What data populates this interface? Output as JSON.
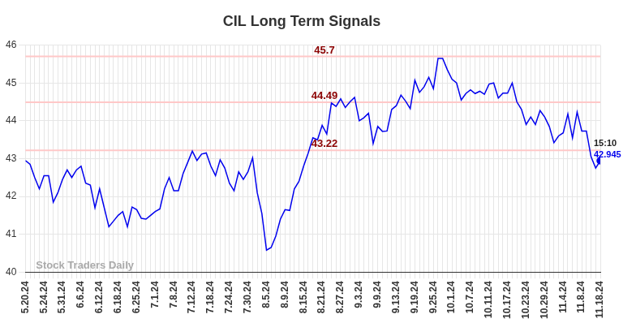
{
  "chart_data": {
    "type": "line",
    "title": "CIL Long Term Signals",
    "categories": [
      "5.20.24",
      null,
      null,
      null,
      "5.24.24",
      null,
      null,
      null,
      "5.31.24",
      null,
      null,
      null,
      "6.6.24",
      null,
      null,
      null,
      "6.12.24",
      null,
      null,
      null,
      "6.18.24",
      null,
      null,
      null,
      "6.25.24",
      null,
      null,
      null,
      "7.1.24",
      null,
      null,
      null,
      "7.8.24",
      null,
      null,
      null,
      "7.12.24",
      null,
      null,
      null,
      "7.18.24",
      null,
      null,
      null,
      "7.24.24",
      null,
      null,
      null,
      "7.30.24",
      null,
      null,
      null,
      "8.5.24",
      null,
      null,
      null,
      "8.9.24",
      null,
      null,
      null,
      "8.15.24",
      null,
      null,
      null,
      "8.21.24",
      null,
      null,
      null,
      "8.27.24",
      null,
      null,
      null,
      "9.3.24",
      null,
      null,
      null,
      "9.9.24",
      null,
      null,
      null,
      "9.13.24",
      null,
      null,
      null,
      "9.19.24",
      null,
      null,
      null,
      "9.25.24",
      null,
      null,
      null,
      "10.1.24",
      null,
      null,
      null,
      "10.7.24",
      null,
      null,
      null,
      "10.11.24",
      null,
      null,
      null,
      "10.17.24",
      null,
      null,
      null,
      "10.23.24",
      null,
      null,
      null,
      "10.29.24",
      null,
      null,
      null,
      "11.4.24",
      null,
      null,
      null,
      "11.8.24",
      null,
      null,
      null,
      "11.18.24"
    ],
    "values": [
      42.95,
      42.85,
      42.5,
      42.2,
      42.55,
      42.55,
      41.85,
      42.1,
      42.45,
      42.7,
      42.5,
      42.7,
      42.8,
      42.35,
      42.3,
      41.7,
      42.2,
      41.7,
      41.2,
      41.35,
      41.5,
      41.6,
      41.2,
      41.72,
      41.65,
      41.42,
      41.4,
      41.5,
      41.6,
      41.67,
      42.2,
      42.5,
      42.15,
      42.15,
      42.6,
      42.9,
      43.2,
      42.95,
      43.12,
      43.15,
      42.8,
      42.55,
      42.97,
      42.75,
      42.35,
      42.15,
      42.65,
      42.45,
      42.65,
      43.02,
      42.1,
      41.55,
      40.58,
      40.65,
      40.95,
      41.4,
      41.65,
      41.63,
      42.2,
      42.4,
      42.8,
      43.15,
      43.55,
      43.5,
      43.88,
      43.65,
      44.47,
      44.38,
      44.58,
      44.35,
      44.5,
      44.62,
      44.0,
      44.08,
      44.2,
      43.4,
      43.85,
      43.72,
      43.73,
      44.3,
      44.4,
      44.68,
      44.52,
      44.32,
      45.07,
      44.75,
      44.9,
      45.15,
      44.85,
      45.65,
      45.65,
      45.35,
      45.1,
      45.0,
      44.55,
      44.72,
      44.82,
      44.72,
      44.78,
      44.7,
      44.97,
      45.0,
      44.6,
      44.73,
      44.73,
      45.0,
      44.5,
      44.3,
      43.9,
      44.1,
      43.9,
      44.27,
      44.1,
      43.85,
      43.42,
      43.6,
      43.68,
      44.18,
      43.55,
      44.23,
      43.73,
      43.73,
      43.05,
      42.75,
      42.945
    ],
    "color": "#0000ee",
    "ylim": [
      40,
      46
    ],
    "yticks": [
      40,
      41,
      42,
      43,
      44,
      45,
      46
    ],
    "grid": true,
    "reference_lines": [
      45.7,
      44.49,
      43.22
    ],
    "last_label": "15:10",
    "marker": "last",
    "watermark": "Stock Traders Daily"
  }
}
